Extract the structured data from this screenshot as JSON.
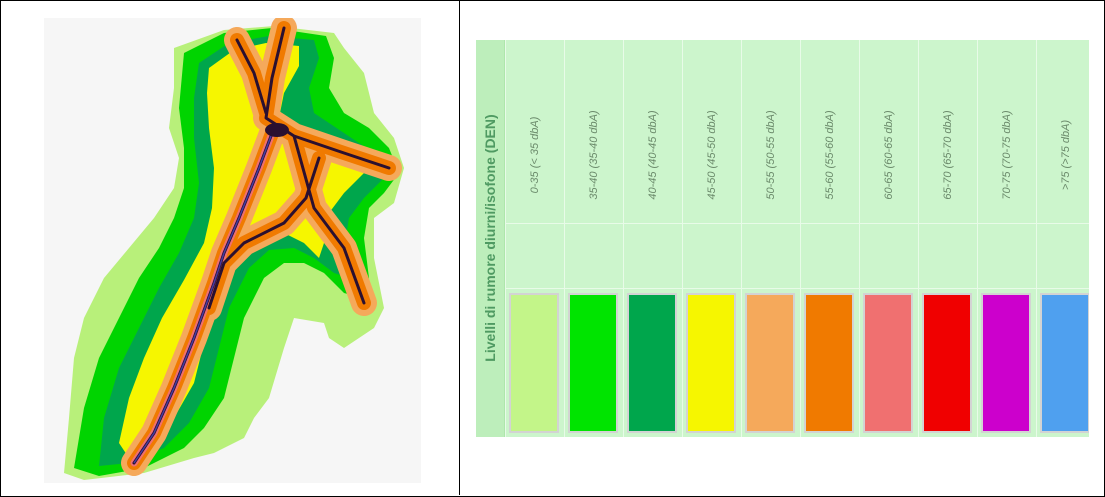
{
  "map": {
    "zone_colors": {
      "background": "#f6f6f6",
      "light_green": "#b8f07a",
      "green": "#00d400",
      "dark_green": "#00a64c",
      "yellow": "#f6f600",
      "light_orange": "#f5a95b",
      "orange": "#f07a00",
      "salmon": "#f07070",
      "red": "#f00000",
      "road": "#2a1030"
    }
  },
  "legend": {
    "title": "Livelli di rumore diurni/isofone (DEN)",
    "title_color": "#4f9a62",
    "items": [
      {
        "label": "0-35 (< 35 dbA)",
        "color": "#c3f589"
      },
      {
        "label": "35-40 (35-40 dbA)",
        "color": "#00e400"
      },
      {
        "label": "40-45 (40-45 dbA)",
        "color": "#00a64c"
      },
      {
        "label": "45-50 (45-50 dbA)",
        "color": "#f6f600"
      },
      {
        "label": "50-55 (50-55 dbA)",
        "color": "#f5a95b"
      },
      {
        "label": "55-60 (55-60 dbA)",
        "color": "#f07a00"
      },
      {
        "label": "60-65 (60-65 dbA)",
        "color": "#f07070"
      },
      {
        "label": "65-70 (65-70 dbA)",
        "color": "#f00000"
      },
      {
        "label": "70-75 (70-75 dbA)",
        "color": "#cc00cc"
      },
      {
        "label": ">75 (>75 dbA)",
        "color": "#4fa0ef"
      }
    ]
  }
}
